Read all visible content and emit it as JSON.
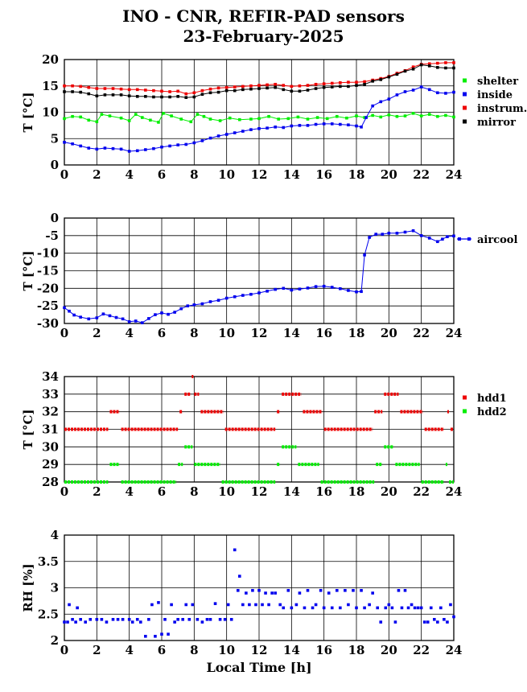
{
  "title": "INO - CNR, REFIR-PAD sensors",
  "subtitle": "23-February-2025",
  "xlabel": "Local Time [h]",
  "chart_data": [
    {
      "type": "scatter",
      "ylabel": "T [°C]",
      "xlim": [
        0,
        24
      ],
      "ylim": [
        0,
        20
      ],
      "xticks": [
        0,
        2,
        4,
        6,
        8,
        10,
        12,
        14,
        16,
        18,
        20,
        22,
        24
      ],
      "yticks": [
        0,
        5,
        10,
        15,
        20
      ],
      "grid": true,
      "legend": "right",
      "series": [
        {
          "name": "shelter",
          "color": "#00ee00",
          "x": [
            0,
            0.5,
            1,
            1.5,
            2,
            2.3,
            2.8,
            3.5,
            4,
            4.4,
            4.8,
            5.3,
            5.8,
            6.1,
            6.6,
            7.2,
            7.8,
            8.2,
            8.6,
            9,
            9.6,
            10.2,
            10.8,
            11.5,
            12,
            12.6,
            13.2,
            13.8,
            14.4,
            15,
            15.6,
            16.2,
            16.8,
            17.4,
            18,
            18.5,
            19,
            19.5,
            20,
            20.5,
            21,
            21.5,
            22,
            22.5,
            23,
            23.5,
            24
          ],
          "y": [
            8.8,
            9.2,
            9.1,
            8.5,
            8.2,
            9.6,
            9.3,
            8.9,
            8.4,
            9.6,
            9.0,
            8.5,
            8.1,
            9.8,
            9.3,
            8.7,
            8.2,
            9.6,
            9.2,
            8.7,
            8.4,
            8.9,
            8.6,
            8.7,
            8.8,
            9.2,
            8.7,
            8.8,
            9.1,
            8.7,
            9.0,
            8.8,
            9.2,
            8.9,
            9.3,
            9.0,
            9.4,
            9.1,
            9.5,
            9.2,
            9.3,
            9.8,
            9.3,
            9.6,
            9.2,
            9.4,
            9.1
          ]
        },
        {
          "name": "inside",
          "color": "#0000ee",
          "x": [
            0,
            0.5,
            1,
            1.5,
            2,
            2.5,
            3,
            3.5,
            4,
            4.5,
            5,
            5.5,
            6,
            6.5,
            7,
            7.5,
            8,
            8.5,
            9,
            9.5,
            10,
            10.5,
            11,
            11.5,
            12,
            12.5,
            13,
            13.5,
            14,
            14.5,
            15,
            15.5,
            16,
            16.5,
            17,
            17.5,
            18,
            18.3,
            18.6,
            19,
            19.5,
            20,
            20.5,
            21,
            21.5,
            22,
            22.5,
            23,
            23.5,
            24
          ],
          "y": [
            4.3,
            4.0,
            3.6,
            3.2,
            3.0,
            3.2,
            3.1,
            3.0,
            2.6,
            2.7,
            2.9,
            3.1,
            3.4,
            3.6,
            3.8,
            3.9,
            4.2,
            4.6,
            5.1,
            5.5,
            5.8,
            6.1,
            6.4,
            6.7,
            6.9,
            7.0,
            7.2,
            7.1,
            7.4,
            7.5,
            7.5,
            7.7,
            7.8,
            7.8,
            7.7,
            7.6,
            7.4,
            7.2,
            9.0,
            11.2,
            12.0,
            12.5,
            13.3,
            13.9,
            14.2,
            14.8,
            14.3,
            13.7,
            13.6,
            13.8
          ]
        },
        {
          "name": "instrum.",
          "color": "#ee0000",
          "x": [
            0,
            0.5,
            1,
            1.5,
            2,
            2.5,
            3,
            3.5,
            4,
            4.5,
            5,
            5.5,
            6,
            6.5,
            7,
            7.5,
            8,
            8.5,
            9,
            9.5,
            10,
            10.5,
            11,
            11.5,
            12,
            12.5,
            13,
            13.5,
            14,
            14.5,
            15,
            15.5,
            16,
            16.5,
            17,
            17.5,
            18,
            18.5,
            19,
            19.5,
            20,
            20.5,
            21,
            21.5,
            22,
            22.5,
            23,
            23.5,
            24
          ],
          "y": [
            15.0,
            15.0,
            14.9,
            14.7,
            14.5,
            14.5,
            14.5,
            14.4,
            14.3,
            14.3,
            14.2,
            14.1,
            14.0,
            13.9,
            14.0,
            13.5,
            13.7,
            14.1,
            14.4,
            14.6,
            14.7,
            14.8,
            14.9,
            15.0,
            15.1,
            15.2,
            15.3,
            15.1,
            14.9,
            15.0,
            15.1,
            15.3,
            15.4,
            15.5,
            15.6,
            15.7,
            15.7,
            15.8,
            16.1,
            16.4,
            16.8,
            17.4,
            17.9,
            18.6,
            19.1,
            19.2,
            19.3,
            19.4,
            19.4
          ]
        },
        {
          "name": "mirror",
          "color": "#000000",
          "x": [
            0,
            0.5,
            1,
            1.5,
            2,
            2.5,
            3,
            3.5,
            4,
            4.5,
            5,
            5.5,
            6,
            6.5,
            7,
            7.5,
            8,
            8.5,
            9,
            9.5,
            10,
            10.5,
            11,
            11.5,
            12,
            12.5,
            13,
            13.5,
            14,
            14.5,
            15,
            15.5,
            16,
            16.5,
            17,
            17.5,
            18,
            18.5,
            19,
            19.5,
            20,
            20.5,
            21,
            21.5,
            22,
            22.5,
            23,
            23.5,
            24
          ],
          "y": [
            13.9,
            13.9,
            13.8,
            13.5,
            13.1,
            13.3,
            13.3,
            13.3,
            13.1,
            13.0,
            13.0,
            12.9,
            12.9,
            12.9,
            13.0,
            12.8,
            12.9,
            13.4,
            13.7,
            13.8,
            14.1,
            14.1,
            14.3,
            14.4,
            14.5,
            14.6,
            14.7,
            14.3,
            14.0,
            14.0,
            14.2,
            14.5,
            14.7,
            14.8,
            14.9,
            14.9,
            15.1,
            15.3,
            15.9,
            16.2,
            16.7,
            17.2,
            17.8,
            18.2,
            19.0,
            18.8,
            18.5,
            18.4,
            18.4
          ]
        }
      ]
    },
    {
      "type": "scatter",
      "ylabel": "T [°C]",
      "xlim": [
        0,
        24
      ],
      "ylim": [
        -30,
        0
      ],
      "xticks": [
        0,
        2,
        4,
        6,
        8,
        10,
        12,
        14,
        16,
        18,
        20,
        22,
        24
      ],
      "yticks": [
        0,
        -5,
        -10,
        -15,
        -20,
        -25,
        -30
      ],
      "grid": true,
      "legend": "right",
      "series": [
        {
          "name": "aircool",
          "color": "#0000ee",
          "x": [
            0,
            0.3,
            0.6,
            1,
            1.5,
            2,
            2.4,
            2.8,
            3.2,
            3.6,
            4,
            4.4,
            4.8,
            5.2,
            5.6,
            6,
            6.4,
            6.8,
            7.2,
            7.6,
            8,
            8.5,
            9,
            9.5,
            10,
            10.5,
            11,
            11.5,
            12,
            12.5,
            13,
            13.5,
            14,
            14.5,
            15,
            15.5,
            16,
            16.5,
            17,
            17.5,
            18,
            18.3,
            18.5,
            18.8,
            19.2,
            19.6,
            20,
            20.5,
            21,
            21.5,
            22,
            22.5,
            23,
            23.3,
            23.6,
            24
          ],
          "y": [
            -25.5,
            -26.5,
            -27.6,
            -28.2,
            -28.7,
            -28.4,
            -27.3,
            -27.8,
            -28.3,
            -28.7,
            -29.5,
            -29.3,
            -29.8,
            -28.6,
            -27.5,
            -27.0,
            -27.4,
            -26.8,
            -25.8,
            -25.0,
            -24.7,
            -24.4,
            -23.8,
            -23.4,
            -22.8,
            -22.4,
            -22.0,
            -21.7,
            -21.3,
            -20.8,
            -20.3,
            -20.0,
            -20.5,
            -20.2,
            -19.9,
            -19.5,
            -19.4,
            -19.7,
            -20.1,
            -20.6,
            -21.0,
            -20.9,
            -10.5,
            -5.5,
            -4.6,
            -4.6,
            -4.3,
            -4.3,
            -4.0,
            -3.6,
            -5.0,
            -5.7,
            -6.7,
            -6.0,
            -5.3,
            -5.1
          ]
        }
      ]
    },
    {
      "type": "scatter",
      "ylabel": "T [°C]",
      "xlim": [
        0,
        24
      ],
      "ylim": [
        28,
        34
      ],
      "xticks": [
        0,
        2,
        4,
        6,
        8,
        10,
        12,
        14,
        16,
        18,
        20,
        22,
        24
      ],
      "yticks": [
        28,
        29,
        30,
        31,
        32,
        33,
        34
      ],
      "grid": true,
      "legend": "right",
      "series": [
        {
          "name": "hdd1",
          "color": "#ee0000",
          "segments": [
            [
              0,
              2.7,
              31
            ],
            [
              2.8,
              3.4,
              32
            ],
            [
              3.5,
              7.0,
              31
            ],
            [
              7.1,
              7.3,
              32
            ],
            [
              7.4,
              7.8,
              33
            ],
            [
              7.85,
              7.95,
              34
            ],
            [
              8.0,
              8.3,
              33
            ],
            [
              8.4,
              9.8,
              32
            ],
            [
              9.9,
              13.0,
              31
            ],
            [
              13.1,
              13.3,
              32
            ],
            [
              13.4,
              14.6,
              33
            ],
            [
              14.7,
              15.9,
              32
            ],
            [
              16.0,
              19.0,
              31
            ],
            [
              19.1,
              19.6,
              32
            ],
            [
              19.7,
              20.6,
              33
            ],
            [
              20.7,
              22.1,
              32
            ],
            [
              22.2,
              23.4,
              31
            ],
            [
              23.6,
              23.7,
              32
            ],
            [
              23.8,
              24.0,
              31
            ]
          ]
        },
        {
          "name": "hdd2",
          "color": "#00ee00",
          "segments": [
            [
              0,
              2.7,
              28
            ],
            [
              2.8,
              3.4,
              29
            ],
            [
              3.5,
              6.9,
              28
            ],
            [
              7.0,
              7.3,
              29
            ],
            [
              7.4,
              7.9,
              30
            ],
            [
              8.0,
              9.6,
              29
            ],
            [
              9.7,
              13.0,
              28
            ],
            [
              13.1,
              13.3,
              29
            ],
            [
              13.4,
              14.3,
              30
            ],
            [
              14.4,
              15.7,
              29
            ],
            [
              15.8,
              19.1,
              28
            ],
            [
              19.2,
              19.6,
              29
            ],
            [
              19.7,
              20.3,
              30
            ],
            [
              20.4,
              21.9,
              29
            ],
            [
              22.0,
              23.4,
              28
            ],
            [
              23.5,
              23.6,
              29
            ],
            [
              23.7,
              24.0,
              28
            ]
          ]
        }
      ]
    },
    {
      "type": "scatter",
      "ylabel": "RH [%]",
      "xlim": [
        0,
        24
      ],
      "ylim": [
        2,
        4
      ],
      "xticks": [
        0,
        2,
        4,
        6,
        8,
        10,
        12,
        14,
        16,
        18,
        20,
        22,
        24
      ],
      "yticks": [
        2,
        2.5,
        3,
        3.5,
        4
      ],
      "ytick_labels": [
        "2",
        "2.5",
        "3",
        "3.5",
        "4"
      ],
      "grid": true,
      "series": [
        {
          "name": "",
          "color": "#0000ee",
          "x": [
            0,
            0.2,
            0.3,
            0.5,
            0.7,
            0.8,
            1,
            1.3,
            1.6,
            2,
            2.3,
            2.6,
            3,
            3.3,
            3.6,
            4,
            4.2,
            4.5,
            4.7,
            5,
            5.2,
            5.4,
            5.6,
            5.8,
            6,
            6.2,
            6.4,
            6.6,
            6.8,
            7,
            7.3,
            7.5,
            7.7,
            7.9,
            8.2,
            8.5,
            8.8,
            9,
            9.3,
            9.6,
            9.9,
            10.1,
            10.3,
            10.5,
            10.7,
            10.8,
            11,
            11.2,
            11.4,
            11.6,
            11.8,
            12,
            12.2,
            12.4,
            12.6,
            12.8,
            13,
            13.3,
            13.5,
            13.8,
            14,
            14.3,
            14.5,
            14.8,
            15,
            15.3,
            15.5,
            15.8,
            16,
            16.3,
            16.5,
            16.8,
            17,
            17.3,
            17.5,
            17.8,
            18,
            18.3,
            18.5,
            18.8,
            19,
            19.3,
            19.5,
            19.8,
            20,
            20.2,
            20.4,
            20.6,
            20.8,
            21,
            21.2,
            21.4,
            21.6,
            21.8,
            22,
            22.2,
            22.4,
            22.6,
            22.8,
            23,
            23.2,
            23.4,
            23.6,
            23.8,
            24
          ],
          "y": [
            2.35,
            2.35,
            2.68,
            2.4,
            2.35,
            2.62,
            2.4,
            2.35,
            2.4,
            2.4,
            2.4,
            2.35,
            2.4,
            2.4,
            2.4,
            2.4,
            2.35,
            2.4,
            2.35,
            2.08,
            2.4,
            2.68,
            2.08,
            2.72,
            2.12,
            2.4,
            2.12,
            2.68,
            2.35,
            2.4,
            2.4,
            2.68,
            2.4,
            2.68,
            2.4,
            2.35,
            2.4,
            2.4,
            2.7,
            2.4,
            2.4,
            2.68,
            2.4,
            3.72,
            2.95,
            3.22,
            2.68,
            2.9,
            2.68,
            2.95,
            2.68,
            2.95,
            2.68,
            2.9,
            2.68,
            2.9,
            2.9,
            2.68,
            2.62,
            2.95,
            2.62,
            2.68,
            2.9,
            2.62,
            2.95,
            2.62,
            2.68,
            2.95,
            2.62,
            2.9,
            2.62,
            2.95,
            2.62,
            2.95,
            2.68,
            2.95,
            2.62,
            2.95,
            2.62,
            2.68,
            2.9,
            2.62,
            2.35,
            2.62,
            2.68,
            2.62,
            2.35,
            2.95,
            2.62,
            2.95,
            2.62,
            2.68,
            2.62,
            2.62,
            2.62,
            2.35,
            2.35,
            2.62,
            2.4,
            2.35,
            2.62,
            2.4,
            2.35,
            2.68,
            2.45
          ]
        }
      ]
    }
  ]
}
